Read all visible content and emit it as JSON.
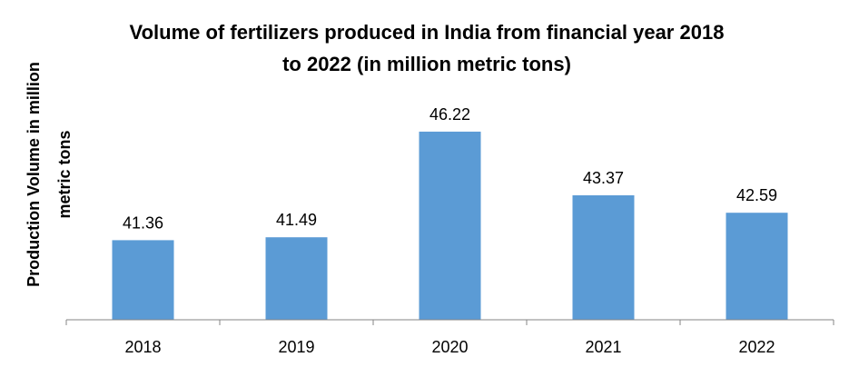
{
  "chart_data": {
    "type": "bar",
    "title_lines": [
      "Volume of fertilizers produced  in India  from financial  year 2018",
      "to 2022 (in million metric tons)"
    ],
    "ylabel_lines": [
      "Production Volume in million",
      "metric tons"
    ],
    "xlabel": "",
    "categories": [
      "2018",
      "2019",
      "2020",
      "2021",
      "2022"
    ],
    "values": [
      41.36,
      41.49,
      46.22,
      43.37,
      42.59
    ],
    "data_labels": [
      "41.36",
      "41.49",
      "46.22",
      "43.37",
      "42.59"
    ],
    "ylim": [
      37.8,
      46.9
    ],
    "bar_color": "#5B9BD5",
    "axis_color": "#868686",
    "grid": false,
    "legend": "none"
  }
}
